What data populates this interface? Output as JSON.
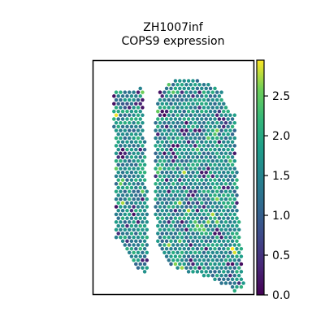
{
  "chart_data": {
    "type": "scatter",
    "title_line1": "ZH1007inf",
    "title_line2": "COPS9 expression",
    "xlabel": "",
    "ylabel": "",
    "grid": false,
    "colormap": "viridis",
    "colorbar": {
      "min": 0.0,
      "max": 2.95,
      "ticks": [
        {
          "value": 0.0,
          "label": "0.0"
        },
        {
          "value": 0.5,
          "label": "0.5"
        },
        {
          "value": 1.0,
          "label": "1.0"
        },
        {
          "value": 1.5,
          "label": "1.5"
        },
        {
          "value": 2.0,
          "label": "2.0"
        },
        {
          "value": 2.5,
          "label": "2.5"
        }
      ]
    },
    "tissue": {
      "left_lobe": [
        [
          0.13,
          0.13
        ],
        [
          0.14,
          0.75
        ],
        [
          0.26,
          0.89
        ],
        [
          0.34,
          0.92
        ],
        [
          0.34,
          0.57
        ],
        [
          0.31,
          0.12
        ]
      ],
      "right_lobe": [
        [
          0.41,
          0.14
        ],
        [
          0.48,
          0.09
        ],
        [
          0.64,
          0.08
        ],
        [
          0.8,
          0.13
        ],
        [
          0.83,
          0.2
        ],
        [
          0.89,
          0.24
        ],
        [
          0.9,
          0.57
        ],
        [
          0.94,
          0.96
        ],
        [
          0.89,
          0.99
        ],
        [
          0.85,
          0.97
        ],
        [
          0.64,
          0.91
        ],
        [
          0.52,
          0.9
        ],
        [
          0.41,
          0.81
        ],
        [
          0.38,
          0.6
        ],
        [
          0.39,
          0.25
        ]
      ],
      "clusters": [
        {
          "x": 0.5,
          "y": 0.4,
          "value": 0.25,
          "spread": 0.05
        },
        {
          "x": 0.57,
          "y": 0.3,
          "value": 0.3,
          "spread": 0.04
        },
        {
          "x": 0.7,
          "y": 0.48,
          "value": 0.35,
          "spread": 0.05
        },
        {
          "x": 0.8,
          "y": 0.25,
          "value": 0.45,
          "spread": 0.04
        },
        {
          "x": 0.3,
          "y": 0.18,
          "value": 0.2,
          "spread": 0.04
        },
        {
          "x": 0.18,
          "y": 0.4,
          "value": 0.3,
          "spread": 0.04
        },
        {
          "x": 0.24,
          "y": 0.65,
          "value": 0.3,
          "spread": 0.04
        },
        {
          "x": 0.43,
          "y": 0.22,
          "value": 0.1,
          "spread": 0.03
        },
        {
          "x": 0.78,
          "y": 0.74,
          "value": 0.3,
          "spread": 0.04
        },
        {
          "x": 0.62,
          "y": 0.58,
          "value": 0.6,
          "spread": 0.05
        },
        {
          "x": 0.2,
          "y": 0.2,
          "value": 0.8,
          "spread": 0.04
        },
        {
          "x": 0.75,
          "y": 0.38,
          "value": 2.9,
          "spread": 0.015
        },
        {
          "x": 0.15,
          "y": 0.24,
          "value": 2.85,
          "spread": 0.015
        },
        {
          "x": 0.2,
          "y": 0.68,
          "value": 2.8,
          "spread": 0.015
        },
        {
          "x": 0.88,
          "y": 0.81,
          "value": 2.8,
          "spread": 0.015
        },
        {
          "x": 0.55,
          "y": 0.8,
          "value": 2.5,
          "spread": 0.03
        },
        {
          "x": 0.66,
          "y": 0.72,
          "value": 2.4,
          "spread": 0.04
        }
      ],
      "base_value": 1.6
    }
  }
}
